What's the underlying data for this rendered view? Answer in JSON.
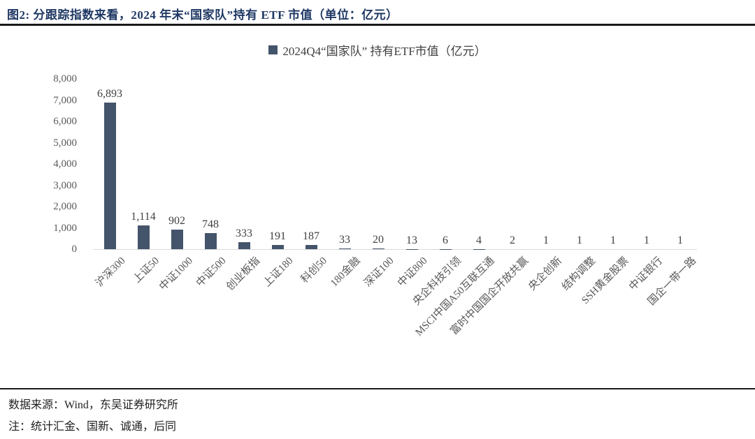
{
  "header": {
    "title": "图2:  分跟踪指数来看，2024 年末“国家队”持有 ETF 市值（单位：亿元）"
  },
  "theme": {
    "title_color": "#1F3864",
    "rule_color": "#1A1A1A",
    "bar_color": "#44546A",
    "axis_text_color": "#595959",
    "value_label_color": "#404040",
    "baseline_color": "#D9D9D9"
  },
  "chart_data": {
    "type": "bar",
    "legend": "2024Q4“国家队” 持有ETF市值（亿元）",
    "legend_position": "top-center",
    "grid": false,
    "categories": [
      "沪深300",
      "上证50",
      "中证1000",
      "中证500",
      "创业板指",
      "上证180",
      "科创50",
      "180金融",
      "深证100",
      "中证800",
      "央企科技引领",
      "MSCI中国A50互联互通",
      "富时中国国企开放共赢",
      "央企创新",
      "结构调整",
      "SSH黄金股票",
      "中证银行",
      "国企一带一路"
    ],
    "values": [
      6893,
      1114,
      902,
      748,
      333,
      191,
      187,
      33,
      20,
      13,
      6,
      4,
      2,
      1,
      1,
      1,
      1,
      1
    ],
    "value_labels": [
      "6,893",
      "1,114",
      "902",
      "748",
      "333",
      "191",
      "187",
      "33",
      "20",
      "13",
      "6",
      "4",
      "2",
      "1",
      "1",
      "1",
      "1",
      "1"
    ],
    "ylabel": "",
    "xlabel": "",
    "ylim": [
      0,
      8000
    ],
    "ytick_interval": 1000,
    "ytick_labels": [
      "0",
      "1,000",
      "2,000",
      "3,000",
      "4,000",
      "5,000",
      "6,000",
      "7,000",
      "8,000"
    ]
  },
  "footer": {
    "source": "数据来源：Wind，东吴证券研究所",
    "note": "注：统计汇金、国新、诚通，后同"
  }
}
